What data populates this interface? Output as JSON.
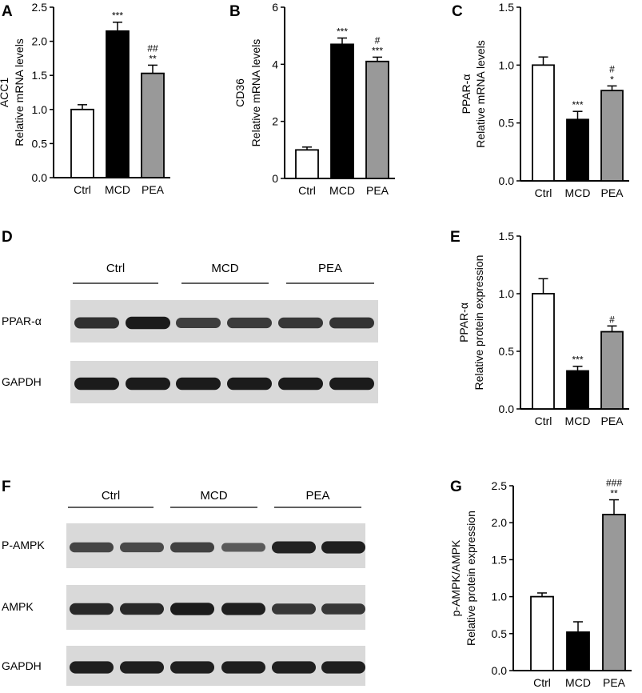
{
  "colors": {
    "Ctrl": "#ffffff",
    "MCD": "#000000",
    "PEA": "#999999",
    "axis": "#000000"
  },
  "chart_data": [
    {
      "panel": "A",
      "type": "bar",
      "categories": [
        "Ctrl",
        "MCD",
        "PEA"
      ],
      "values": [
        1.0,
        2.15,
        1.53
      ],
      "errors": [
        0.07,
        0.13,
        0.12
      ],
      "significance": [
        [],
        [
          "***"
        ],
        [
          "##",
          "**"
        ]
      ],
      "ylabel_lines": [
        "ACC1",
        "Relative mRNA levels"
      ],
      "ylim": [
        0,
        2.5
      ],
      "yticks": [
        "0.0",
        "0.5",
        "1.0",
        "1.5",
        "2.0",
        "2.5"
      ]
    },
    {
      "panel": "B",
      "type": "bar",
      "categories": [
        "Ctrl",
        "MCD",
        "PEA"
      ],
      "values": [
        1.0,
        4.7,
        4.1
      ],
      "errors": [
        0.1,
        0.22,
        0.15
      ],
      "significance": [
        [],
        [
          "***"
        ],
        [
          "#",
          "***"
        ]
      ],
      "ylabel_lines": [
        "CD36",
        "Relative mRNA levels"
      ],
      "ylim": [
        0,
        6
      ],
      "yticks": [
        "0",
        "2",
        "4",
        "6"
      ]
    },
    {
      "panel": "C",
      "type": "bar",
      "categories": [
        "Ctrl",
        "MCD",
        "PEA"
      ],
      "values": [
        1.0,
        0.53,
        0.78
      ],
      "errors": [
        0.07,
        0.07,
        0.04
      ],
      "significance": [
        [],
        [
          "***"
        ],
        [
          "#",
          "*"
        ]
      ],
      "ylabel_lines": [
        "PPAR-α",
        "Relative mRNA levels"
      ],
      "ylim": [
        0,
        1.5
      ],
      "yticks": [
        "0.0",
        "0.5",
        "1.0",
        "1.5"
      ]
    },
    {
      "panel": "E",
      "type": "bar",
      "categories": [
        "Ctrl",
        "MCD",
        "PEA"
      ],
      "values": [
        1.0,
        0.33,
        0.67
      ],
      "errors": [
        0.13,
        0.04,
        0.05
      ],
      "significance": [
        [],
        [
          "***"
        ],
        [
          "#"
        ]
      ],
      "ylabel_lines": [
        "PPAR-α",
        "Relative protein expression"
      ],
      "ylim": [
        0,
        1.5
      ],
      "yticks": [
        "0.0",
        "0.5",
        "1.0",
        "1.5"
      ]
    },
    {
      "panel": "G",
      "type": "bar",
      "categories": [
        "Ctrl",
        "MCD",
        "PEA"
      ],
      "values": [
        1.0,
        0.52,
        2.11
      ],
      "errors": [
        0.05,
        0.14,
        0.2
      ],
      "significance": [
        [],
        [],
        [
          "###",
          "**"
        ]
      ],
      "ylabel_lines": [
        "p-AMPK/AMPK",
        "Relative protein expression"
      ],
      "ylim": [
        0,
        2.5
      ],
      "yticks": [
        "0.0",
        "0.5",
        "1.0",
        "1.5",
        "2.0",
        "2.5"
      ]
    }
  ],
  "blots": [
    {
      "panel": "D",
      "groups": [
        "Ctrl",
        "MCD",
        "PEA"
      ],
      "rows": [
        {
          "label": "PPAR-α",
          "intensities": [
            0.8,
            0.95,
            0.7,
            0.72,
            0.75,
            0.78
          ]
        },
        {
          "label": "GAPDH",
          "intensities": [
            0.95,
            0.95,
            0.95,
            0.95,
            0.95,
            0.95
          ]
        }
      ]
    },
    {
      "panel": "F",
      "groups": [
        "Ctrl",
        "MCD",
        "PEA"
      ],
      "rows": [
        {
          "label": "P-AMPK",
          "intensities": [
            0.65,
            0.62,
            0.68,
            0.5,
            0.9,
            0.92
          ]
        },
        {
          "label": "AMPK",
          "intensities": [
            0.85,
            0.85,
            0.95,
            0.92,
            0.75,
            0.75
          ]
        },
        {
          "label": "GAPDH",
          "intensities": [
            0.92,
            0.92,
            0.92,
            0.92,
            0.92,
            0.92
          ]
        }
      ]
    }
  ]
}
